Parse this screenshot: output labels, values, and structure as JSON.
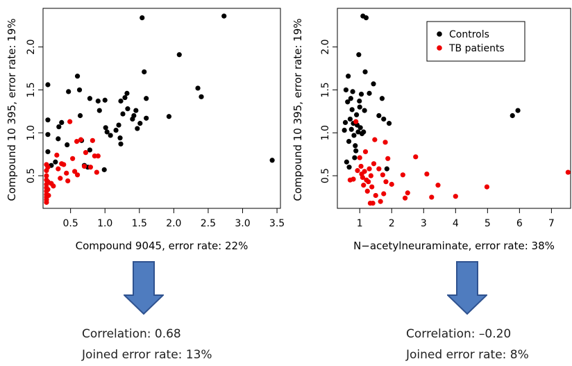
{
  "chart_data": [
    {
      "type": "scatter",
      "xlabel": "Compound 9045, error rate: 22%",
      "ylabel": "Compound 10 395, error rate: 19%",
      "xlim": [
        0.1,
        3.55
      ],
      "ylim": [
        0.12,
        2.45
      ],
      "xticks": [
        "0.5",
        "1.0",
        "1.5",
        "2.0",
        "2.5",
        "3.0",
        "3.5"
      ],
      "yticks": [
        "0.5",
        "1.0",
        "1.5",
        "2.0"
      ],
      "legend": null,
      "series": [
        {
          "color": "#000000",
          "points": [
            [
              0.17,
              1.56
            ],
            [
              0.17,
              1.15
            ],
            [
              0.17,
              0.98
            ],
            [
              0.17,
              0.78
            ],
            [
              0.22,
              0.62
            ],
            [
              0.28,
              0.66
            ],
            [
              0.32,
              0.93
            ],
            [
              0.33,
              1.07
            ],
            [
              0.37,
              1.12
            ],
            [
              0.45,
              0.86
            ],
            [
              0.47,
              1.48
            ],
            [
              0.6,
              1.66
            ],
            [
              0.64,
              1.2
            ],
            [
              0.63,
              1.5
            ],
            [
              0.66,
              0.91
            ],
            [
              0.7,
              0.62
            ],
            [
              0.75,
              0.6
            ],
            [
              0.78,
              1.4
            ],
            [
              0.78,
              0.8
            ],
            [
              0.9,
              1.37
            ],
            [
              0.92,
              1.26
            ],
            [
              0.99,
              0.57
            ],
            [
              1.0,
              1.38
            ],
            [
              1.01,
              1.06
            ],
            [
              1.03,
              1.01
            ],
            [
              1.08,
              0.97
            ],
            [
              1.16,
              1.03
            ],
            [
              1.2,
              1.09
            ],
            [
              1.22,
              0.94
            ],
            [
              1.23,
              0.87
            ],
            [
              1.23,
              1.37
            ],
            [
              1.26,
              1.22
            ],
            [
              1.29,
              1.41
            ],
            [
              1.32,
              1.46
            ],
            [
              1.33,
              1.28
            ],
            [
              1.4,
              1.16
            ],
            [
              1.42,
              1.2
            ],
            [
              1.45,
              1.26
            ],
            [
              1.47,
              1.05
            ],
            [
              1.51,
              1.11
            ],
            [
              1.54,
              2.34
            ],
            [
              1.57,
              1.71
            ],
            [
              1.6,
              1.4
            ],
            [
              1.6,
              1.17
            ],
            [
              1.93,
              1.19
            ],
            [
              2.08,
              1.91
            ],
            [
              2.35,
              1.52
            ],
            [
              2.4,
              1.42
            ],
            [
              2.73,
              2.36
            ],
            [
              3.43,
              0.68
            ]
          ]
        },
        {
          "color": "#ee0000",
          "points": [
            [
              0.15,
              0.63
            ],
            [
              0.15,
              0.56
            ],
            [
              0.15,
              0.5
            ],
            [
              0.15,
              0.45
            ],
            [
              0.15,
              0.4
            ],
            [
              0.15,
              0.36
            ],
            [
              0.15,
              0.32
            ],
            [
              0.15,
              0.28
            ],
            [
              0.15,
              0.25
            ],
            [
              0.15,
              0.22
            ],
            [
              0.15,
              0.19
            ],
            [
              0.17,
              0.6
            ],
            [
              0.17,
              0.43
            ],
            [
              0.17,
              0.34
            ],
            [
              0.18,
              0.27
            ],
            [
              0.22,
              0.41
            ],
            [
              0.25,
              0.38
            ],
            [
              0.3,
              0.74
            ],
            [
              0.32,
              0.58
            ],
            [
              0.35,
              0.47
            ],
            [
              0.37,
              0.64
            ],
            [
              0.4,
              0.63
            ],
            [
              0.44,
              0.53
            ],
            [
              0.46,
              0.44
            ],
            [
              0.49,
              1.13
            ],
            [
              0.53,
              0.7
            ],
            [
              0.56,
              0.55
            ],
            [
              0.59,
              0.9
            ],
            [
              0.6,
              0.51
            ],
            [
              0.65,
              0.92
            ],
            [
              0.7,
              0.61
            ],
            [
              0.72,
              0.77
            ],
            [
              0.79,
              0.6
            ],
            [
              0.82,
              0.91
            ],
            [
              0.85,
              0.73
            ],
            [
              0.88,
              0.54
            ],
            [
              0.9,
              0.73
            ]
          ]
        }
      ]
    },
    {
      "type": "scatter",
      "xlabel": "N−acetylneuraminate, error rate: 38%",
      "ylabel": "Compound 10 395, error rate: 19%",
      "xlim": [
        0.3,
        7.6
      ],
      "ylim": [
        0.12,
        2.45
      ],
      "xticks": [
        "1",
        "2",
        "3",
        "4",
        "5",
        "6",
        "7"
      ],
      "yticks": [
        "0.5",
        "1.0",
        "1.5",
        "2.0"
      ],
      "legend": {
        "position": "top-right",
        "entries": [
          {
            "label": "Controls",
            "color": "#000000"
          },
          {
            "label": "TB patients",
            "color": "#ee0000"
          }
        ]
      },
      "series": [
        {
          "color": "#000000",
          "points": [
            [
              0.52,
              1.03
            ],
            [
              0.55,
              1.12
            ],
            [
              0.57,
              1.5
            ],
            [
              0.59,
              0.66
            ],
            [
              0.62,
              1.36
            ],
            [
              0.64,
              1.66
            ],
            [
              0.66,
              0.9
            ],
            [
              0.67,
              0.6
            ],
            [
              0.7,
              1.16
            ],
            [
              0.72,
              1.4
            ],
            [
              0.74,
              1.04
            ],
            [
              0.76,
              1.27
            ],
            [
              0.78,
              1.48
            ],
            [
              0.8,
              1.11
            ],
            [
              0.82,
              0.97
            ],
            [
              0.84,
              0.71
            ],
            [
              0.86,
              0.85
            ],
            [
              0.88,
              0.79
            ],
            [
              0.9,
              1.21
            ],
            [
              0.92,
              1.09
            ],
            [
              0.95,
              1.01
            ],
            [
              0.97,
              1.91
            ],
            [
              0.99,
              1.37
            ],
            [
              1.0,
              1.3
            ],
            [
              1.02,
              1.06
            ],
            [
              1.05,
              1.45
            ],
            [
              1.07,
              0.99
            ],
            [
              1.1,
              2.36
            ],
            [
              1.12,
              1.01
            ],
            [
              1.15,
              1.26
            ],
            [
              1.17,
              1.71
            ],
            [
              1.2,
              2.34
            ],
            [
              1.3,
              1.46
            ],
            [
              1.43,
              1.57
            ],
            [
              1.6,
              1.2
            ],
            [
              1.7,
              1.4
            ],
            [
              1.75,
              1.16
            ],
            [
              1.85,
              0.58
            ],
            [
              1.92,
              1.11
            ],
            [
              5.78,
              1.2
            ],
            [
              5.95,
              1.26
            ]
          ]
        },
        {
          "color": "#ee0000",
          "points": [
            [
              0.7,
              0.45
            ],
            [
              0.8,
              0.46
            ],
            [
              0.88,
              1.13
            ],
            [
              0.93,
              0.56
            ],
            [
              1.0,
              0.71
            ],
            [
              1.04,
              0.61
            ],
            [
              1.06,
              0.52
            ],
            [
              1.09,
              0.48
            ],
            [
              1.12,
              0.39
            ],
            [
              1.15,
              0.55
            ],
            [
              1.18,
              0.78
            ],
            [
              1.21,
              0.45
            ],
            [
              1.24,
              0.32
            ],
            [
              1.27,
              0.43
            ],
            [
              1.3,
              0.58
            ],
            [
              1.33,
              0.18
            ],
            [
              1.35,
              0.5
            ],
            [
              1.38,
              0.37
            ],
            [
              1.41,
              0.18
            ],
            [
              1.44,
              0.64
            ],
            [
              1.47,
              0.92
            ],
            [
              1.5,
              0.27
            ],
            [
              1.6,
              0.58
            ],
            [
              1.65,
              0.2
            ],
            [
              1.72,
              0.51
            ],
            [
              1.75,
              0.29
            ],
            [
              1.8,
              0.89
            ],
            [
              1.82,
              0.43
            ],
            [
              1.88,
              0.7
            ],
            [
              2.0,
              0.4
            ],
            [
              2.35,
              0.51
            ],
            [
              2.42,
              0.24
            ],
            [
              2.5,
              0.3
            ],
            [
              2.75,
              0.72
            ],
            [
              3.1,
              0.52
            ],
            [
              3.25,
              0.25
            ],
            [
              3.45,
              0.39
            ],
            [
              4.0,
              0.26
            ],
            [
              4.98,
              0.37
            ],
            [
              7.52,
              0.54
            ]
          ]
        }
      ]
    }
  ],
  "summaries": [
    {
      "correlation": "Correlation: 0.68",
      "error_rate": "Joined error rate: 13%"
    },
    {
      "correlation": "Correlation: –0.20",
      "error_rate": "Joined error rate: 8%"
    }
  ],
  "arrow_colors": {
    "fill": "#4f7cbf",
    "stroke": "#2f528f"
  }
}
